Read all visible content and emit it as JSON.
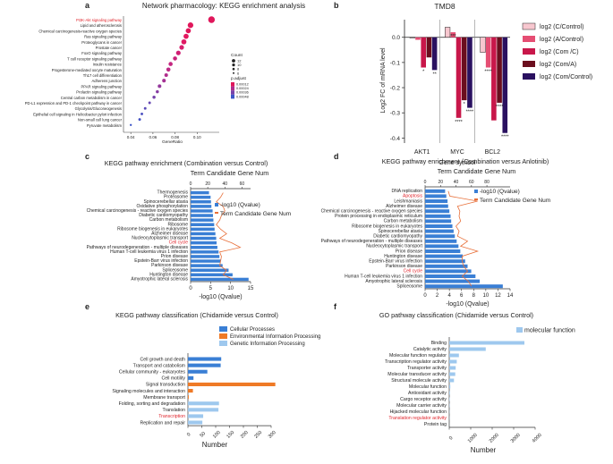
{
  "colors": {
    "bar_blue": "#3a7fd5",
    "line_orange": "#e8703a",
    "pathway_red": "#e0242b",
    "proc_blue": "#3a7fd5",
    "env_orange": "#ef7a26",
    "gen_light": "#9ec8ee",
    "mf_light": "#9ec8ee",
    "tmd_c": "#f7c7cf",
    "tmd_a": "#e54e73",
    "tmd_comc": "#c8174a",
    "tmd_coma": "#6b0e1e",
    "tmd_comctrl": "#2a1160"
  },
  "chart_data": [
    {
      "panel": "a",
      "type": "scatter",
      "title": "Network pharmacology: KEGG enrichment analysis",
      "xlabel": "GeneRatio",
      "xlim": [
        0.035,
        0.12
      ],
      "xticks": [
        "0.04",
        "0.06",
        "0.08",
        "0.10"
      ],
      "xtick_values": [
        0.04,
        0.06,
        0.08,
        0.1
      ],
      "categories": [
        "PI3K-Akt signaling pathway",
        "Lipid and atherosclerosis",
        "Chemical carcinogenesis-reactive oxygen species",
        "Ras signaling pathway",
        "Proteoglycans in cancer",
        "Prostate cancer",
        "FoxO signaling pathway",
        "T cell receptor signaling pathway",
        "Insulin resistance",
        "Progesterone-mediated oocyte maturation",
        "Th17 cell differentiation",
        "Adherens junction",
        "PPAR signaling pathway",
        "Prolactin signaling pathway",
        "Central carbon metabolism in cancer",
        "PD-L1 expression and PD-1 checkpoint pathway in cancer",
        "Glycolysis/Gluconeogenesis",
        "Epithelial cell signaling in Helicobacter pylori infection",
        "Non-small cell lung cancer",
        "Pyruvate metabolism"
      ],
      "highlight": "PI3K-Akt signaling pathway",
      "x": [
        0.113,
        0.094,
        0.092,
        0.09,
        0.088,
        0.086,
        0.083,
        0.08,
        0.076,
        0.074,
        0.072,
        0.07,
        0.066,
        0.064,
        0.061,
        0.057,
        0.053,
        0.05,
        0.048,
        0.04
      ],
      "count": [
        14,
        12,
        11,
        11,
        11,
        10,
        10,
        9,
        9,
        9,
        8,
        8,
        8,
        7,
        7,
        6,
        6,
        6,
        6,
        5
      ],
      "colors": [
        "#e0175b",
        "#e0175b",
        "#e0175b",
        "#e3185f",
        "#e01a64",
        "#d81f6e",
        "#d01f74",
        "#c8237a",
        "#c42680",
        "#bd2a86",
        "#b02d8c",
        "#a53294",
        "#94389c",
        "#873ca2",
        "#7742aa",
        "#6648b2",
        "#5a4bb8",
        "#4c50c0",
        "#4552c4",
        "#3c55c8"
      ],
      "legend": {
        "count_title": "Count",
        "count_values": [
          "12",
          "10",
          "8",
          "6"
        ],
        "padj_title": "p.adjust",
        "padj_values": [
          "0.00012",
          "0.00024",
          "0.00036",
          "0.00048"
        ]
      }
    },
    {
      "panel": "b",
      "type": "bar",
      "title": "TMD8",
      "xlabel": "Gene symbol",
      "ylabel": "Log2 FC of mRNA  level",
      "ylim": [
        -0.42,
        0.07
      ],
      "yticks": [
        "0.0",
        "-0.1",
        "-0.2",
        "-0.3",
        "-0.4"
      ],
      "ytick_values": [
        0.0,
        -0.1,
        -0.2,
        -0.3,
        -0.4
      ],
      "categories": [
        "AKT1",
        "MYC",
        "BCL2"
      ],
      "series": [
        {
          "name": "log2 (C/Control)",
          "values": [
            0.0,
            0.04,
            -0.06
          ]
        },
        {
          "name": "log2 (A/Control)",
          "values": [
            -0.01,
            0.02,
            -0.12
          ]
        },
        {
          "name": "log2 (Com /C)",
          "values": [
            -0.12,
            -0.32,
            -0.33
          ]
        },
        {
          "name": "log2 (Com/A)",
          "values": [
            -0.08,
            -0.25,
            -0.26
          ]
        },
        {
          "name": "log2 (Com/Control)",
          "values": [
            -0.13,
            -0.28,
            -0.38
          ]
        }
      ],
      "annotations": [
        {
          "group": 0,
          "series": 2,
          "text": "*"
        },
        {
          "group": 0,
          "series": 4,
          "text": "**"
        },
        {
          "group": 1,
          "series": 1,
          "text": "***"
        },
        {
          "group": 1,
          "series": 2,
          "text": "****"
        },
        {
          "group": 1,
          "series": 3,
          "text": "*"
        },
        {
          "group": 1,
          "series": 4,
          "text": "****"
        },
        {
          "group": 2,
          "series": 1,
          "text": "****"
        },
        {
          "group": 2,
          "series": 3,
          "text": "****"
        },
        {
          "group": 2,
          "series": 4,
          "text": "****"
        }
      ]
    },
    {
      "panel": "c",
      "type": "bar",
      "title": "KEGG pathway enrichment (Combination versus Control)",
      "top_axis_title": "Term Candidate Gene Num",
      "xlabel": "-log10 (Qvalue)",
      "xlim": [
        0,
        15
      ],
      "xticks": [
        "0",
        "5",
        "10",
        "15"
      ],
      "xtick_values": [
        0,
        5,
        10,
        15
      ],
      "top_ticks": [
        "0",
        "20",
        "40",
        "60"
      ],
      "categories": [
        "Thermogenesis",
        "Proteasome",
        "Spinocerebellar ataxia",
        "Oxidative phosphorylation",
        "Chemical carcinogenesis - reactive oxygen species",
        "Diabetic cardiomyopathy",
        "Carbon metabolism",
        "Ribosome",
        "Ribosome biogenesis in eukaryotes",
        "Alzheimer disease",
        "Nucleocytoplasmic transport",
        "Cell cycle",
        "Pathways of neurodegeneration - multiple diseases",
        "Human T-cell leukemia virus 1 infection",
        "Prion disease",
        "Epstein-Barr virus infection",
        "Parkinson disease",
        "Spliceosome",
        "Huntington disease",
        "Amyotrophic lateral sclerosis"
      ],
      "highlight": "Cell cycle",
      "values": [
        4.6,
        5.0,
        5.1,
        5.2,
        5.5,
        5.6,
        5.7,
        5.9,
        6.0,
        6.2,
        6.4,
        6.5,
        6.7,
        7.0,
        7.2,
        7.5,
        8.0,
        9.5,
        10.5,
        14.5
      ],
      "gene_num": [
        38,
        35,
        30,
        38,
        40,
        36,
        34,
        30,
        35,
        42,
        34,
        48,
        58,
        34,
        36,
        35,
        34,
        42,
        38,
        50
      ],
      "legend": [
        "-log10 (Qvalue)",
        "Term Candidate Gene Num"
      ]
    },
    {
      "panel": "d",
      "type": "bar",
      "title": "KEGG pathway enrichment (Combination versus Anlotinib)",
      "top_axis_title": "Term Candidate Gene Num",
      "xlabel": "-log10 (Qvalue)",
      "xlim": [
        0,
        14
      ],
      "xticks": [
        "0",
        "2",
        "4",
        "6",
        "8",
        "10",
        "12",
        "14"
      ],
      "xtick_values": [
        0,
        2,
        4,
        6,
        8,
        10,
        12,
        14
      ],
      "top_ticks": [
        "0",
        "20",
        "40",
        "60",
        "80"
      ],
      "categories": [
        "DNA replication",
        "Apoptosis",
        "Leishmaniasis",
        "Alzheimer disease",
        "Chemical carcinogenesis - reactive oxygen species",
        "Protein processing in endoplasmic reticulum",
        "Carbon metabolism",
        "Ribosome biogenesis in eukaryotes",
        "Spinocerebellar ataxia",
        "Diabetic cardiomyopathy",
        "Pathways of neurodegeneration - multiple diseases",
        "Nucleocytoplasmic transport",
        "Prion disease",
        "Huntington disease",
        "Epstein-Barr virus infection",
        "Parkinson disease",
        "Cell cycle",
        "Human T-cell leukemia virus 1 infection",
        "Amyotrophic lateral sclerosis",
        "Spliceosome"
      ],
      "highlight": [
        "Apoptosis",
        "Cell cycle"
      ],
      "values": [
        3.3,
        3.5,
        3.7,
        3.8,
        4.0,
        4.2,
        4.3,
        4.5,
        4.7,
        4.9,
        5.2,
        5.5,
        5.8,
        6.2,
        6.6,
        7.0,
        7.6,
        8.3,
        9.0,
        12.8
      ],
      "gene_num": [
        30,
        32,
        68,
        42,
        45,
        44,
        46,
        40,
        44,
        42,
        55,
        46,
        68,
        48,
        48,
        50,
        55,
        48,
        56,
        60
      ],
      "legend": [
        "-log10 (Qvalue)",
        "Term Candidate Gene Num"
      ]
    },
    {
      "panel": "e",
      "type": "bar",
      "title": "KEGG pathway classification (Chidamide versus Control)",
      "xlabel": "Number",
      "xlim": [
        0,
        300
      ],
      "xticks": [
        "0",
        "50",
        "100",
        "150",
        "200",
        "250",
        "300"
      ],
      "xtick_values": [
        0,
        50,
        100,
        150,
        200,
        250,
        300
      ],
      "legend": [
        "Cellular Processes",
        "Environmental Information Processing",
        "Genetic Information Processing"
      ],
      "categories": [
        "Cell growth and death",
        "Transport and catabolism",
        "Cellular community - eukaryotes",
        "Cell motility",
        "Signal transduction",
        "Signaling molecules and interaction",
        "Membrane transport",
        "Folding, sorting and degradation",
        "Translation",
        "Transcription",
        "Replication and repair"
      ],
      "highlight": "Transcription",
      "values": [
        120,
        118,
        70,
        20,
        315,
        18,
        3,
        112,
        110,
        55,
        52
      ],
      "group": [
        0,
        0,
        0,
        0,
        1,
        1,
        1,
        2,
        2,
        2,
        2
      ]
    },
    {
      "panel": "f",
      "type": "bar",
      "title": "GO pathway classification (Chidamide versus Control)",
      "xlabel": "Number",
      "xlim": [
        0,
        4000
      ],
      "xticks": [
        "0",
        "1000",
        "2000",
        "3000",
        "4000"
      ],
      "xtick_values": [
        0,
        1000,
        2000,
        3000,
        4000
      ],
      "legend": [
        "molecular function"
      ],
      "categories": [
        "Binding",
        "Catalytic activity",
        "Molecular function regulator",
        "Transcription regulator activity",
        "Transporter activity",
        "Molecular transducer activity",
        "Structural molecule activity",
        "Molecular function",
        "Antioxidant activity",
        "Cargo receptor activity",
        "Molecular carrier activity",
        "Hijacked molecular function",
        "Translation regulator activity",
        "Protein tag"
      ],
      "highlight": "Translation regulator activity",
      "values": [
        3500,
        1700,
        450,
        350,
        300,
        280,
        220,
        50,
        30,
        20,
        15,
        10,
        8,
        3
      ]
    }
  ],
  "panel_labels": [
    "a",
    "b",
    "c",
    "d",
    "e",
    "f"
  ]
}
